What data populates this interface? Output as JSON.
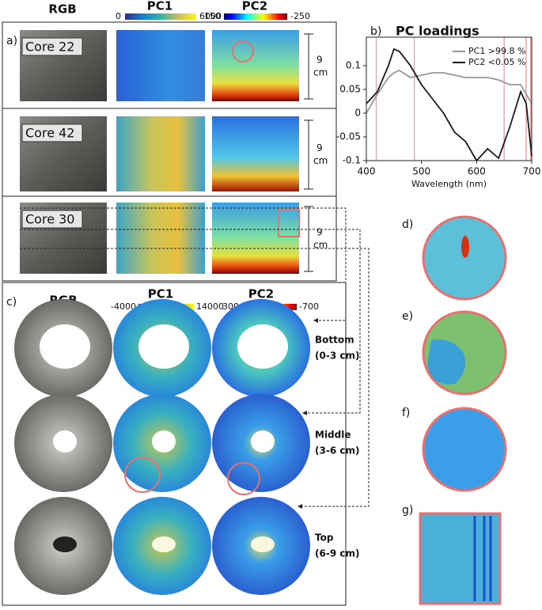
{
  "panel_a": {
    "label": "a)",
    "headers": [
      "RGB",
      "PC1",
      "PC2"
    ],
    "pc1_colorbar": [
      0,
      6000
    ],
    "pc2_colorbar": [
      150,
      -250
    ],
    "cores": [
      "Core 22",
      "Core 42",
      "Core 30"
    ],
    "scale_bars": [
      {
        "length": "9",
        "unit": "cm"
      },
      {
        "length": "9",
        "unit": "cm"
      },
      {
        "length": "9",
        "unit": "cm"
      }
    ]
  },
  "chart_data": {
    "type": "line",
    "label": "b)",
    "title": "PC loadings",
    "xlabel": "Wavelength (nm)",
    "x": [
      400,
      420,
      440,
      450,
      460,
      480,
      500,
      520,
      540,
      560,
      580,
      600,
      620,
      640,
      660,
      680,
      690,
      700
    ],
    "series": [
      {
        "name": "PC1 >99.8 %",
        "color": "#999999",
        "values": [
          0.0,
          0.04,
          0.075,
          0.085,
          0.09,
          0.075,
          0.08,
          0.085,
          0.085,
          0.08,
          0.075,
          0.075,
          0.075,
          0.07,
          0.06,
          0.06,
          0.04,
          0.02
        ]
      },
      {
        "name": "PC2 <0.05 %",
        "color": "#1a1a1a",
        "values": [
          0.02,
          0.045,
          0.1,
          0.135,
          0.13,
          0.1,
          0.06,
          0.03,
          0.0,
          -0.04,
          -0.06,
          -0.1,
          -0.075,
          -0.095,
          -0.03,
          0.045,
          0.02,
          -0.09
        ]
      }
    ],
    "xlim": [
      400,
      700
    ],
    "ylim": [
      -0.1,
      0.16
    ],
    "xticks": [
      400,
      500,
      600,
      700
    ],
    "yticks": [
      -0.1,
      -0.05,
      0,
      0.05,
      0.1
    ],
    "vlines": [
      418,
      487,
      650,
      690,
      698
    ],
    "vline_color": "#f4a3a8",
    "legend": "upper right"
  },
  "panel_c": {
    "label": "c)",
    "headers": [
      "RGB",
      "PC1",
      "PC2"
    ],
    "pc1_colorbar": [
      -4000,
      14000
    ],
    "pc2_colorbar": [
      300,
      -700
    ],
    "layers": [
      {
        "name": "Bottom",
        "range": "(0-3 cm)"
      },
      {
        "name": "Middle",
        "range": "(3-6 cm)"
      },
      {
        "name": "Top",
        "range": "(6-9 cm)"
      }
    ]
  },
  "insets": [
    "d)",
    "e)",
    "f)",
    "g)"
  ]
}
